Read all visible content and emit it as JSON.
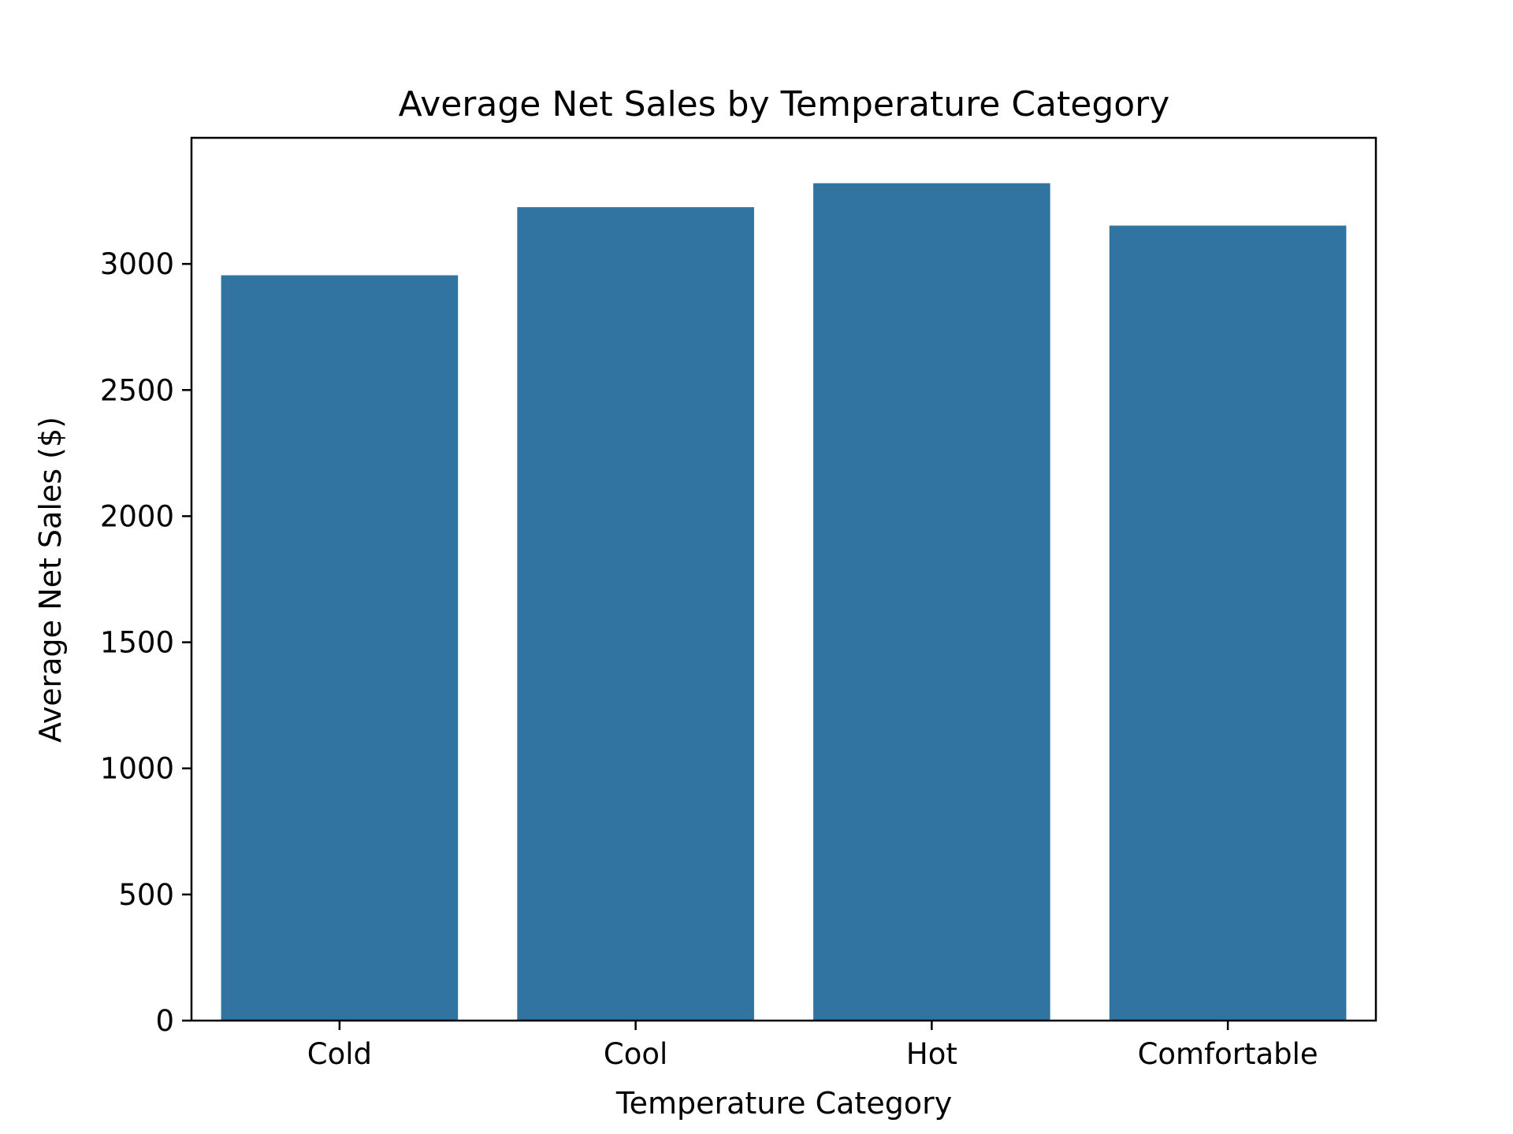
{
  "chart_data": {
    "type": "bar",
    "title": "Average Net Sales by Temperature Category",
    "xlabel": "Temperature Category",
    "ylabel": "Average Net Sales ($)",
    "categories": [
      "Cold",
      "Cool",
      "Hot",
      "Comfortable"
    ],
    "values": [
      2955,
      3225,
      3320,
      3152
    ],
    "ylim": [
      0,
      3500
    ],
    "yticks": [
      0,
      500,
      1000,
      1500,
      2000,
      2500,
      3000
    ],
    "bar_color": "#3274a1",
    "grid": false,
    "legend": "none"
  }
}
